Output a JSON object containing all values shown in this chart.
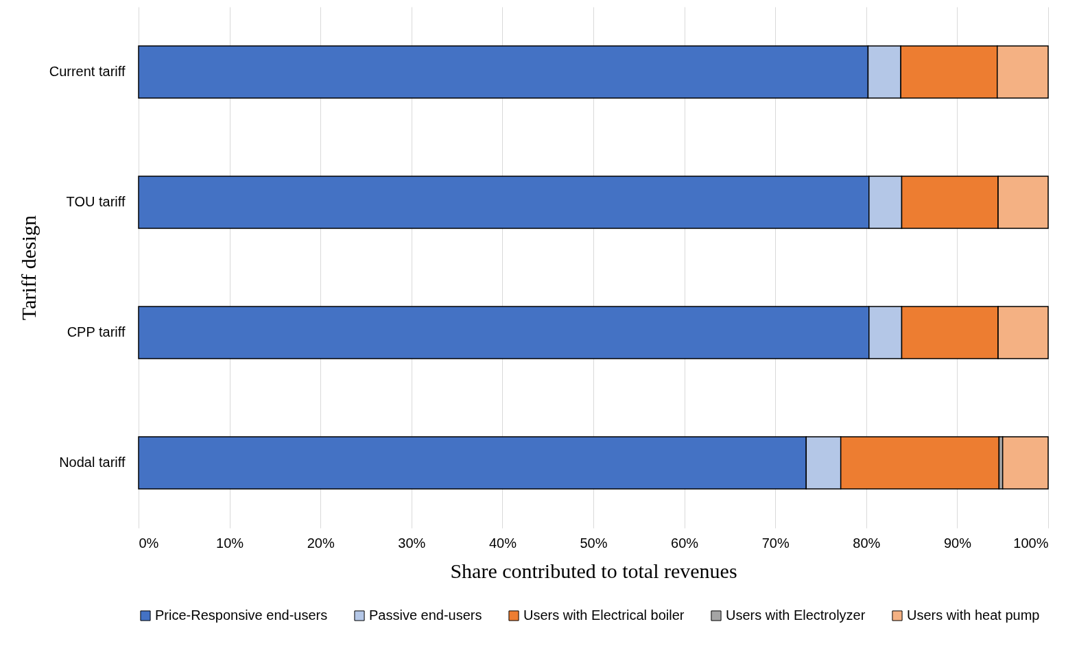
{
  "chart_data": {
    "type": "bar",
    "orientation": "horizontal",
    "stacked": true,
    "xlabel": "Share contributed to total revenues",
    "ylabel": "Tariff design",
    "categories": [
      "Current tariff",
      "TOU tariff",
      "CPP tariff",
      "Nodal tariff"
    ],
    "series": [
      {
        "name": "Price-Responsive end-users",
        "color": "#4472c4",
        "values": [
          80.2,
          80.3,
          80.3,
          73.4
        ]
      },
      {
        "name": "Passive end-users",
        "color": "#b4c7e7",
        "values": [
          3.6,
          3.6,
          3.6,
          3.8
        ]
      },
      {
        "name": "Users with Electrical boiler",
        "color": "#ed7d31",
        "values": [
          10.6,
          10.6,
          10.6,
          17.4
        ]
      },
      {
        "name": "Users with Electrolyzer",
        "color": "#a5a5a5",
        "values": [
          0,
          0,
          0,
          0.4
        ]
      },
      {
        "name": "Users with heat pump",
        "color": "#f4b183",
        "values": [
          5.6,
          5.5,
          5.5,
          5.0
        ]
      }
    ],
    "xlim": [
      0,
      100
    ],
    "xticks": [
      {
        "value": 0,
        "label": "0%"
      },
      {
        "value": 10,
        "label": "10%"
      },
      {
        "value": 20,
        "label": "20%"
      },
      {
        "value": 30,
        "label": "30%"
      },
      {
        "value": 40,
        "label": "40%"
      },
      {
        "value": 50,
        "label": "50%"
      },
      {
        "value": 60,
        "label": "60%"
      },
      {
        "value": 70,
        "label": "70%"
      },
      {
        "value": 80,
        "label": "80%"
      },
      {
        "value": 90,
        "label": "90%"
      },
      {
        "value": 100,
        "label": "100%"
      }
    ],
    "grid": "x",
    "legend": "bottom"
  }
}
